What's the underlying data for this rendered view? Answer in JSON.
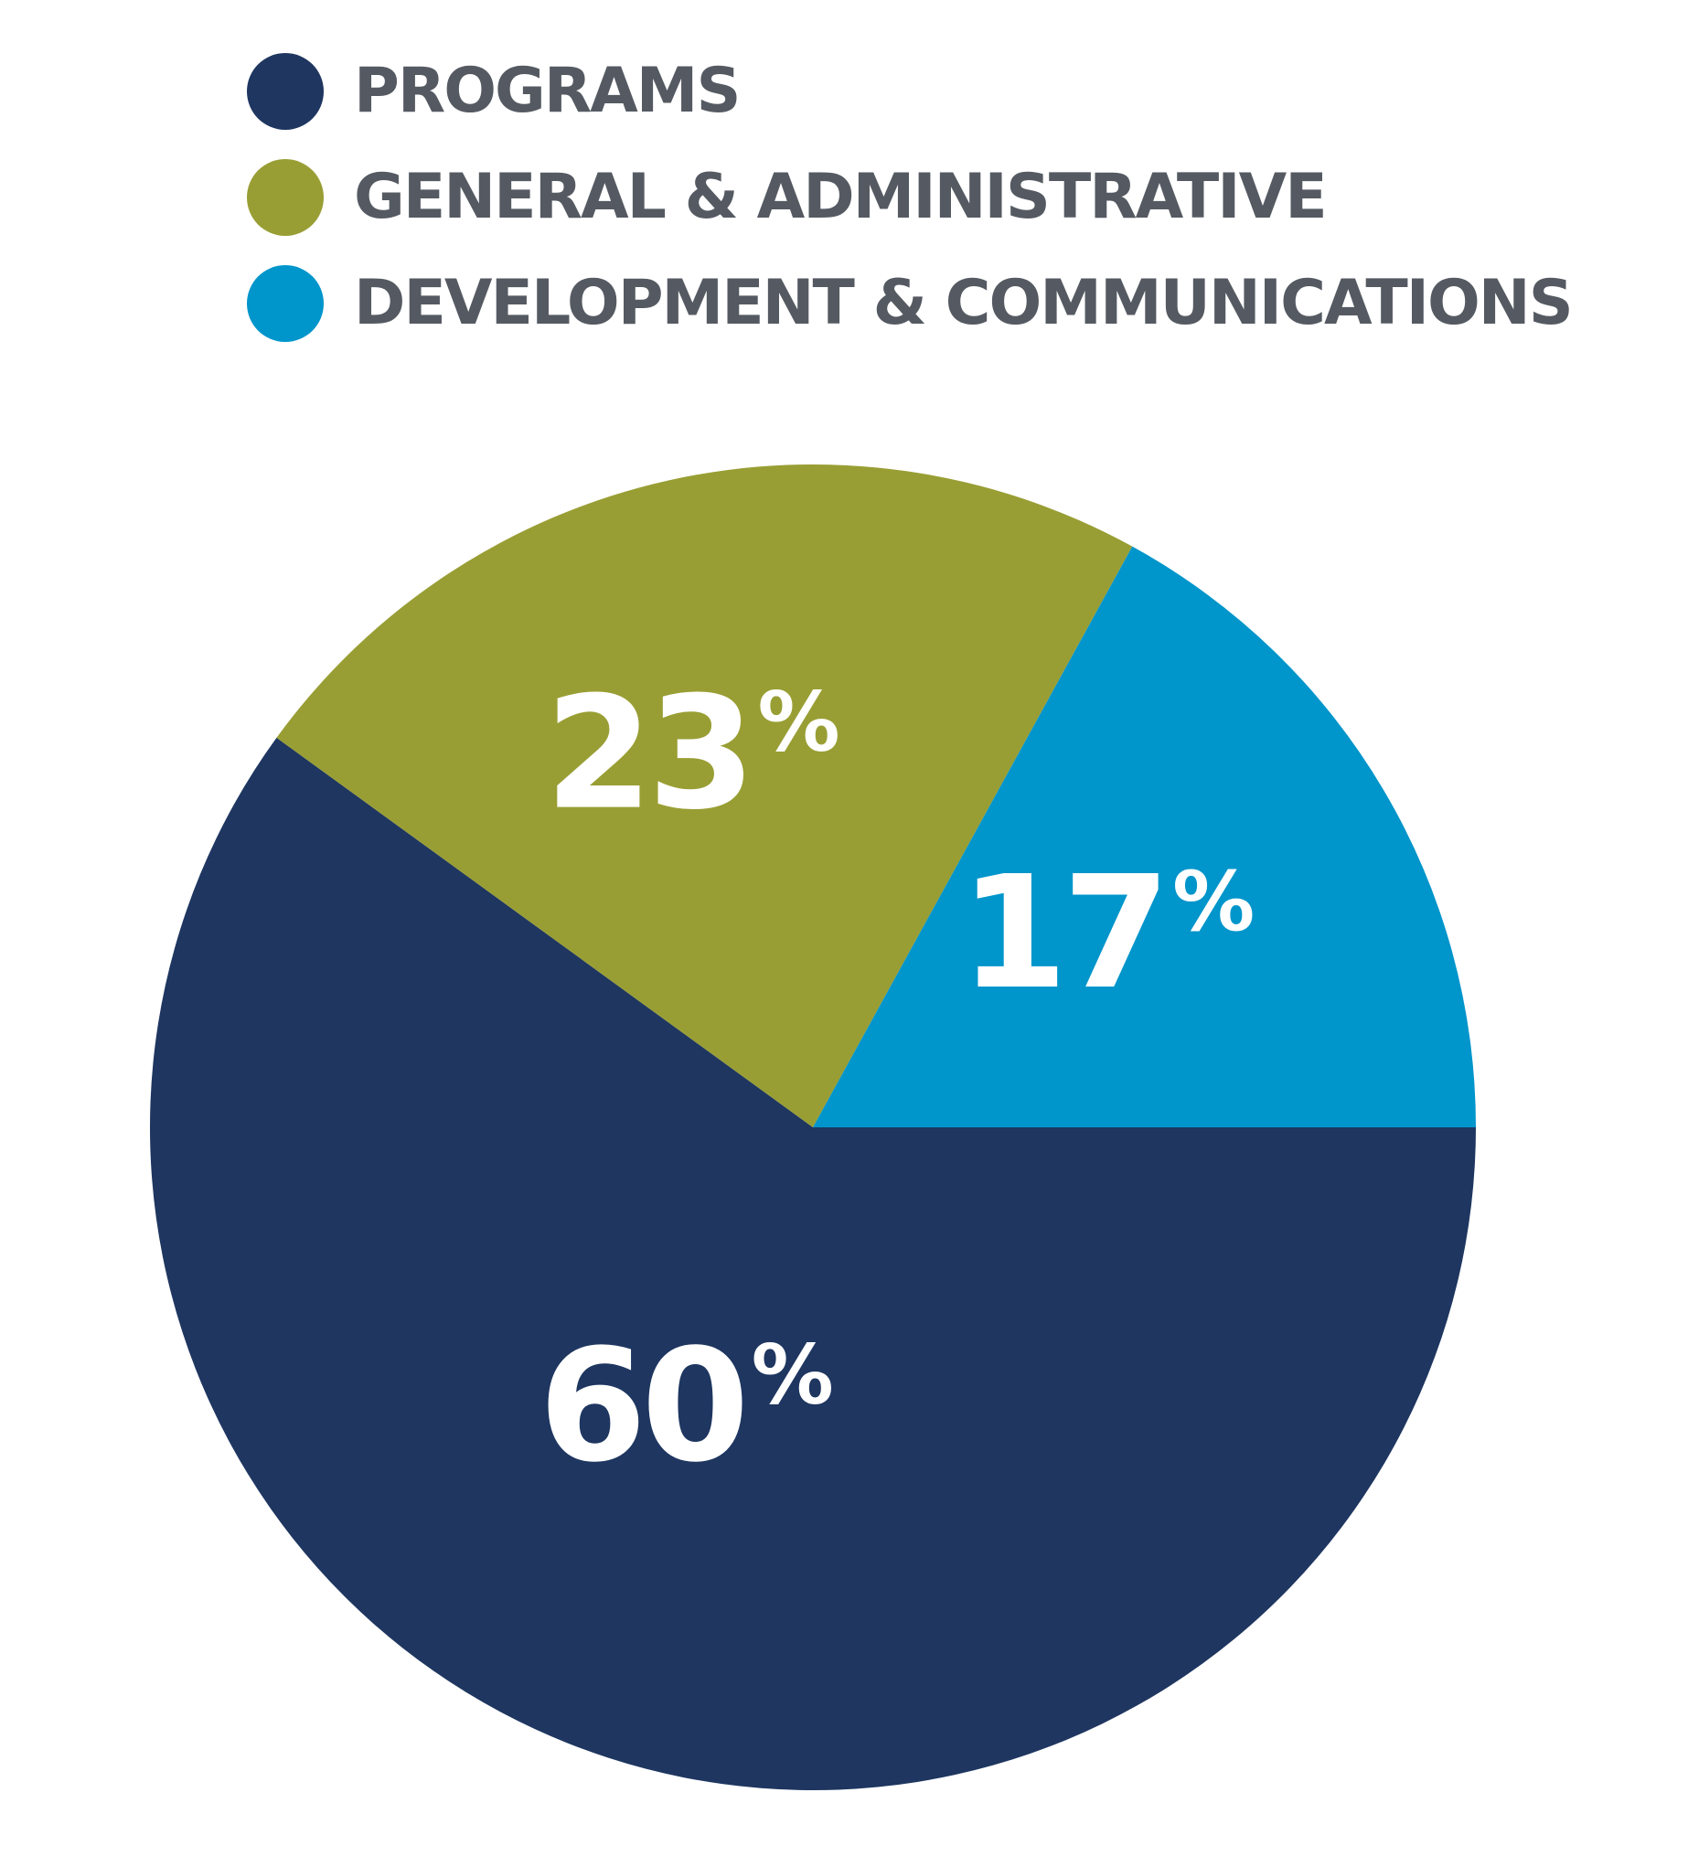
{
  "chart_data": {
    "type": "pie",
    "title": "",
    "legend_position": "top-left",
    "slices": [
      {
        "name": "PROGRAMS",
        "value": 60,
        "value_label": "60",
        "color": "#1e3660"
      },
      {
        "name": "GENERAL & ADMINISTRATIVE",
        "value": 23,
        "value_label": "23",
        "color": "#999e34"
      },
      {
        "name": "DEVELOPMENT & COMMUNICATIONS",
        "value": 17,
        "value_label": "17",
        "color": "#0095cb"
      }
    ],
    "unit_symbol": "%"
  }
}
